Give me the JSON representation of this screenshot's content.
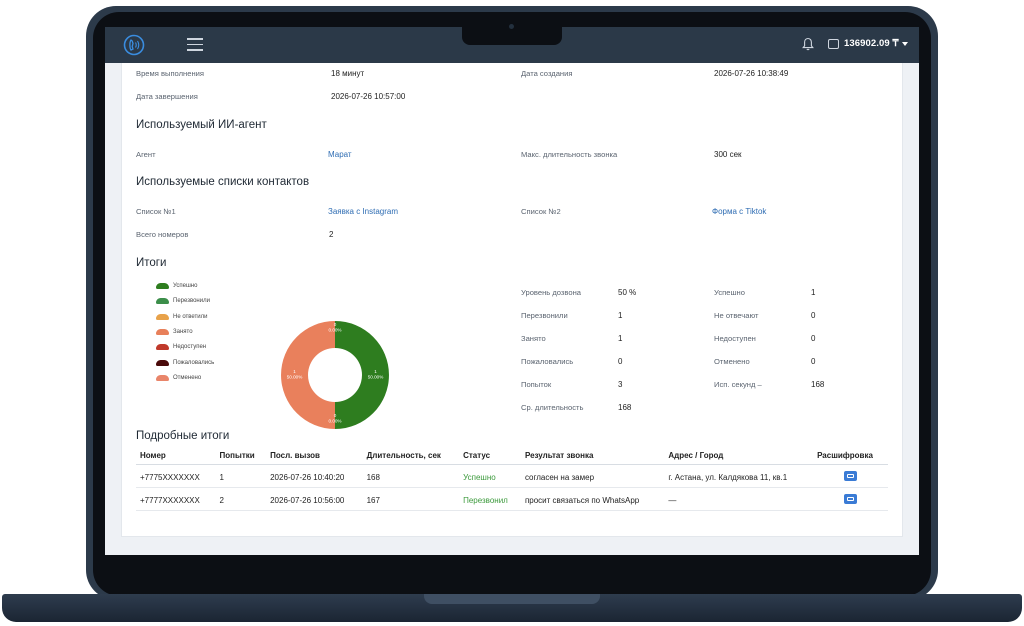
{
  "topbar": {
    "balance": "136902.09 ₸"
  },
  "info": {
    "exec_time_label": "Время выполнения",
    "exec_time_value": "18 минут",
    "created_label": "Дата создания",
    "created_value": "2026-07-26 10:38:49",
    "finished_label": "Дата завершения",
    "finished_value": "2026-07-26 10:57:00"
  },
  "agent_section": {
    "title": "Используемый ИИ-агент",
    "agent_label": "Агент",
    "agent_value": "Марат",
    "maxdur_label": "Макс. длительность звонка",
    "maxdur_value": "300 сек"
  },
  "lists_section": {
    "title": "Используемые списки контактов",
    "list1_label": "Список №1",
    "list1_value": "Заявка с Instagram",
    "list2_label": "Список №2",
    "list2_value": "Форма с Tiktok",
    "total_label": "Всего номеров",
    "total_value": "2"
  },
  "results_section": {
    "title": "Итоги",
    "legend": [
      {
        "label": "Успешно",
        "color": "#2e7d1f"
      },
      {
        "label": "Перезвонили",
        "color": "#3c8e4a"
      },
      {
        "label": "Не ответили",
        "color": "#e8a24a"
      },
      {
        "label": "Занято",
        "color": "#e8805a"
      },
      {
        "label": "Недоступен",
        "color": "#c0392b"
      },
      {
        "label": "Пожаловались",
        "color": "#4a0a0a"
      },
      {
        "label": "Отменено",
        "color": "#e9856a"
      }
    ],
    "stats_left": [
      {
        "label": "Уровень дозвона",
        "value": "50 %"
      },
      {
        "label": "Перезвонили",
        "value": "1"
      },
      {
        "label": "Занято",
        "value": "1"
      },
      {
        "label": "Пожаловались",
        "value": "0"
      },
      {
        "label": "Попыток",
        "value": "3"
      },
      {
        "label": "Ср. длительность",
        "value": "168"
      }
    ],
    "stats_right": [
      {
        "label": "Успешно",
        "value": "1"
      },
      {
        "label": "Не отвечают",
        "value": "0"
      },
      {
        "label": "Недоступен",
        "value": "0"
      },
      {
        "label": "Отменено",
        "value": "0"
      },
      {
        "label": "Исп. секунд –",
        "value": "168"
      }
    ]
  },
  "chart_data": {
    "type": "pie",
    "categories": [
      "Успешно",
      "Занято"
    ],
    "values": [
      1,
      1
    ],
    "data_labels": [
      "1\n50.00%",
      "1\n50.00%"
    ],
    "zero_labels": [
      "0\n0.00%",
      "0\n0.00%"
    ],
    "colors": [
      "#2e7d1f",
      "#e9805c"
    ]
  },
  "details_section": {
    "title": "Подробные итоги",
    "headers": [
      "Номер",
      "Попытки",
      "Посл. вызов",
      "Длительность, сек",
      "Статус",
      "Результат звонка",
      "Адрес / Город",
      "Расшифровка"
    ],
    "rows": [
      {
        "number": "+7775XXXXXXX",
        "attempts": "1",
        "last_call": "2026-07-26 10:40:20",
        "duration": "168",
        "status": "Успешно",
        "result": "согласен на замер",
        "address": "г. Астана, ул. Калдякова 11, кв.1"
      },
      {
        "number": "+7777XXXXXXX",
        "attempts": "2",
        "last_call": "2026-07-26 10:56:00",
        "duration": "167",
        "status": "Перезвонил",
        "result": "просит связаться по WhatsApp",
        "address": "—"
      }
    ]
  }
}
